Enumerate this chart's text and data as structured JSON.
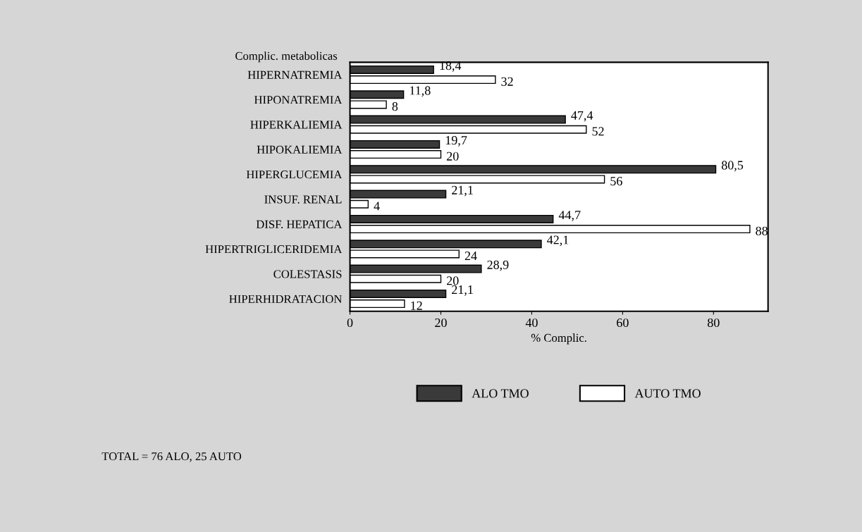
{
  "chart_data": {
    "type": "bar",
    "orientation": "horizontal",
    "ylabel": "Complic. metabolicas",
    "xlabel": "% Complic.",
    "categories": [
      "HIPERNATREMIA",
      "HIPONATREMIA",
      "HIPERKALIEMIA",
      "HIPOKALIEMIA",
      "HIPERGLUCEMIA",
      "INSUF. RENAL",
      "DISF. HEPATICA",
      "HIPERTRIGLICERIDEMIA",
      "COLESTASIS",
      "HIPERHIDRATACION"
    ],
    "series": [
      {
        "name": "ALO TMO",
        "color": "#3a3a3a",
        "values": [
          18.4,
          11.8,
          47.4,
          19.7,
          80.5,
          21.1,
          44.7,
          42.1,
          28.9,
          21.1
        ],
        "value_labels": [
          "18,4",
          "11,8",
          "47,4",
          "19,7",
          "80,5",
          "21,1",
          "44,7",
          "42,1",
          "28,9",
          "21,1"
        ]
      },
      {
        "name": "AUTO TMO",
        "color": "#ffffff",
        "values": [
          32,
          8,
          52,
          20,
          56,
          4,
          88,
          24,
          20,
          12
        ],
        "value_labels": [
          "32",
          "8",
          "52",
          "20",
          "56",
          "4",
          "88",
          "24",
          "20",
          "12"
        ]
      }
    ],
    "xlim": [
      0,
      92
    ],
    "xticks": [
      0,
      20,
      40,
      60,
      80
    ],
    "grid": false,
    "legend": "bottom",
    "annotations": [
      "TOTAL = 76 ALO, 25 AUTO"
    ]
  }
}
